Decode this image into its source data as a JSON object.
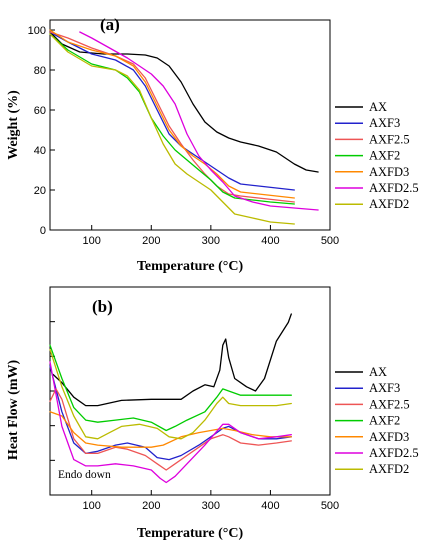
{
  "chart_data": [
    {
      "type": "line",
      "panel_label": "(a)",
      "xlabel": "Temperature (°C)",
      "ylabel": "Weight (%)",
      "xlim": [
        30,
        500
      ],
      "ylim": [
        0,
        105
      ],
      "xticks": [
        100,
        200,
        300,
        400,
        500
      ],
      "yticks": [
        0,
        20,
        40,
        60,
        80,
        100
      ],
      "grid": false,
      "legend_position": "right",
      "series": [
        {
          "name": "AX",
          "color": "#000000",
          "x": [
            30,
            50,
            80,
            120,
            160,
            190,
            210,
            230,
            250,
            270,
            290,
            310,
            330,
            350,
            380,
            410,
            440,
            460,
            480
          ],
          "y": [
            99,
            93,
            89,
            88,
            88,
            87.5,
            86,
            82,
            74,
            63,
            54,
            49,
            46,
            44,
            42,
            39,
            33,
            30,
            29
          ]
        },
        {
          "name": "AXF3",
          "color": "#2222cc",
          "x": [
            30,
            60,
            100,
            140,
            170,
            190,
            210,
            230,
            250,
            270,
            290,
            310,
            330,
            350,
            380,
            410,
            440
          ],
          "y": [
            99,
            94,
            88,
            85,
            80,
            72,
            60,
            48,
            42,
            38,
            34,
            30,
            26,
            23,
            22,
            21,
            20
          ]
        },
        {
          "name": "AXF2.5",
          "color": "#ee5555",
          "x": [
            30,
            60,
            100,
            140,
            170,
            190,
            210,
            230,
            250,
            270,
            290,
            310,
            330,
            350,
            380,
            410,
            440
          ],
          "y": [
            99,
            96,
            91,
            87,
            83,
            76,
            64,
            52,
            43,
            35,
            28,
            22,
            18,
            17,
            16,
            15,
            14
          ]
        },
        {
          "name": "AXF2",
          "color": "#00cc00",
          "x": [
            30,
            60,
            100,
            140,
            160,
            180,
            200,
            220,
            240,
            260,
            280,
            300,
            320,
            340,
            370,
            400,
            440
          ],
          "y": [
            98,
            90,
            83,
            80,
            76,
            69,
            56,
            47,
            40,
            35,
            30,
            25,
            19,
            16,
            15,
            14,
            13
          ]
        },
        {
          "name": "AXFD3",
          "color": "#ff8800",
          "x": [
            30,
            60,
            100,
            140,
            170,
            190,
            210,
            230,
            250,
            270,
            290,
            310,
            330,
            350,
            380,
            410,
            440
          ],
          "y": [
            100,
            94,
            90,
            87,
            82,
            74,
            62,
            50,
            42,
            37,
            33,
            28,
            22,
            19,
            18,
            17,
            16
          ]
        },
        {
          "name": "AXFD2.5",
          "color": "#dd00dd",
          "x": [
            80,
            100,
            130,
            160,
            180,
            200,
            220,
            240,
            260,
            280,
            300,
            320,
            340,
            370,
            400,
            440,
            480
          ],
          "y": [
            99,
            96,
            91,
            86,
            82,
            78,
            72,
            63,
            48,
            37,
            30,
            24,
            17,
            14,
            12,
            11,
            10
          ]
        },
        {
          "name": "AXFD2",
          "color": "#bbbb00",
          "x": [
            30,
            60,
            100,
            140,
            160,
            180,
            200,
            220,
            240,
            260,
            280,
            300,
            320,
            340,
            370,
            400,
            440
          ],
          "y": [
            98,
            89,
            82,
            80,
            77,
            70,
            56,
            43,
            33,
            28,
            24,
            20,
            14,
            8,
            6,
            4,
            3
          ]
        }
      ]
    },
    {
      "type": "line",
      "panel_label": "(b)",
      "xlabel": "Temperature (°C)",
      "ylabel": "Heat Flow (mW)",
      "annotation": "Endo down",
      "xlim": [
        30,
        500
      ],
      "ylim": [
        0,
        100
      ],
      "xticks": [
        100,
        200,
        300,
        400,
        500
      ],
      "yticks": [],
      "grid": false,
      "legend_position": "right",
      "series": [
        {
          "name": "AX",
          "color": "#000000",
          "x": [
            35,
            50,
            70,
            90,
            110,
            150,
            200,
            250,
            270,
            290,
            305,
            315,
            320,
            325,
            330,
            340,
            360,
            375,
            390,
            410,
            430,
            435
          ],
          "y": [
            58,
            54,
            47,
            43,
            43,
            45.5,
            46,
            46,
            50,
            53,
            52,
            60,
            72,
            75,
            66,
            56,
            52,
            50,
            56,
            74,
            83,
            87
          ]
        },
        {
          "name": "AXF3",
          "color": "#2222cc",
          "x": [
            30,
            50,
            70,
            90,
            110,
            140,
            160,
            190,
            210,
            230,
            250,
            280,
            300,
            320,
            330,
            350,
            380,
            410,
            435
          ],
          "y": [
            62,
            40,
            25,
            20,
            21,
            24,
            25,
            23,
            18,
            17,
            19,
            24,
            28,
            32,
            33,
            30,
            27,
            27,
            28
          ]
        },
        {
          "name": "AXF2.5",
          "color": "#ee5555",
          "x": [
            30,
            40,
            50,
            70,
            90,
            110,
            140,
            160,
            190,
            210,
            225,
            240,
            260,
            280,
            300,
            320,
            330,
            350,
            380,
            410,
            435
          ],
          "y": [
            45,
            51,
            46,
            27,
            20,
            20,
            23,
            22,
            19,
            15,
            12,
            15,
            19,
            23,
            27,
            29,
            28,
            25,
            24,
            25,
            26
          ]
        },
        {
          "name": "AXF2",
          "color": "#00cc00",
          "x": [
            30,
            50,
            70,
            90,
            110,
            140,
            170,
            200,
            225,
            240,
            260,
            290,
            310,
            320,
            330,
            350,
            380,
            410,
            435
          ],
          "y": [
            72,
            56,
            42,
            36,
            35,
            36,
            37,
            35,
            31,
            33,
            36,
            40,
            47,
            51,
            50,
            48,
            48,
            48,
            48
          ]
        },
        {
          "name": "AXFD3",
          "color": "#ff8800",
          "x": [
            30,
            50,
            70,
            90,
            110,
            150,
            200,
            220,
            250,
            280,
            300,
            320,
            340,
            370,
            400,
            435
          ],
          "y": [
            40,
            38,
            30,
            25,
            24,
            23,
            23,
            24,
            28,
            30,
            31,
            32,
            31,
            29,
            28,
            28
          ]
        },
        {
          "name": "AXFD2.5",
          "color": "#dd00dd",
          "x": [
            30,
            50,
            70,
            90,
            110,
            140,
            170,
            200,
            215,
            225,
            240,
            260,
            290,
            320,
            330,
            350,
            380,
            410,
            435
          ],
          "y": [
            64,
            33,
            17,
            14,
            14,
            15,
            14,
            12,
            8,
            6,
            9,
            15,
            24,
            34,
            34,
            30,
            27,
            28,
            29
          ]
        },
        {
          "name": "AXFD2",
          "color": "#bbbb00",
          "x": [
            30,
            50,
            70,
            90,
            110,
            130,
            150,
            180,
            210,
            230,
            250,
            270,
            290,
            310,
            320,
            330,
            350,
            380,
            410,
            435
          ],
          "y": [
            70,
            52,
            38,
            28,
            27,
            30,
            33,
            34,
            32,
            28,
            27,
            30,
            36,
            44,
            47,
            44,
            43,
            43,
            43,
            44
          ]
        }
      ]
    }
  ]
}
